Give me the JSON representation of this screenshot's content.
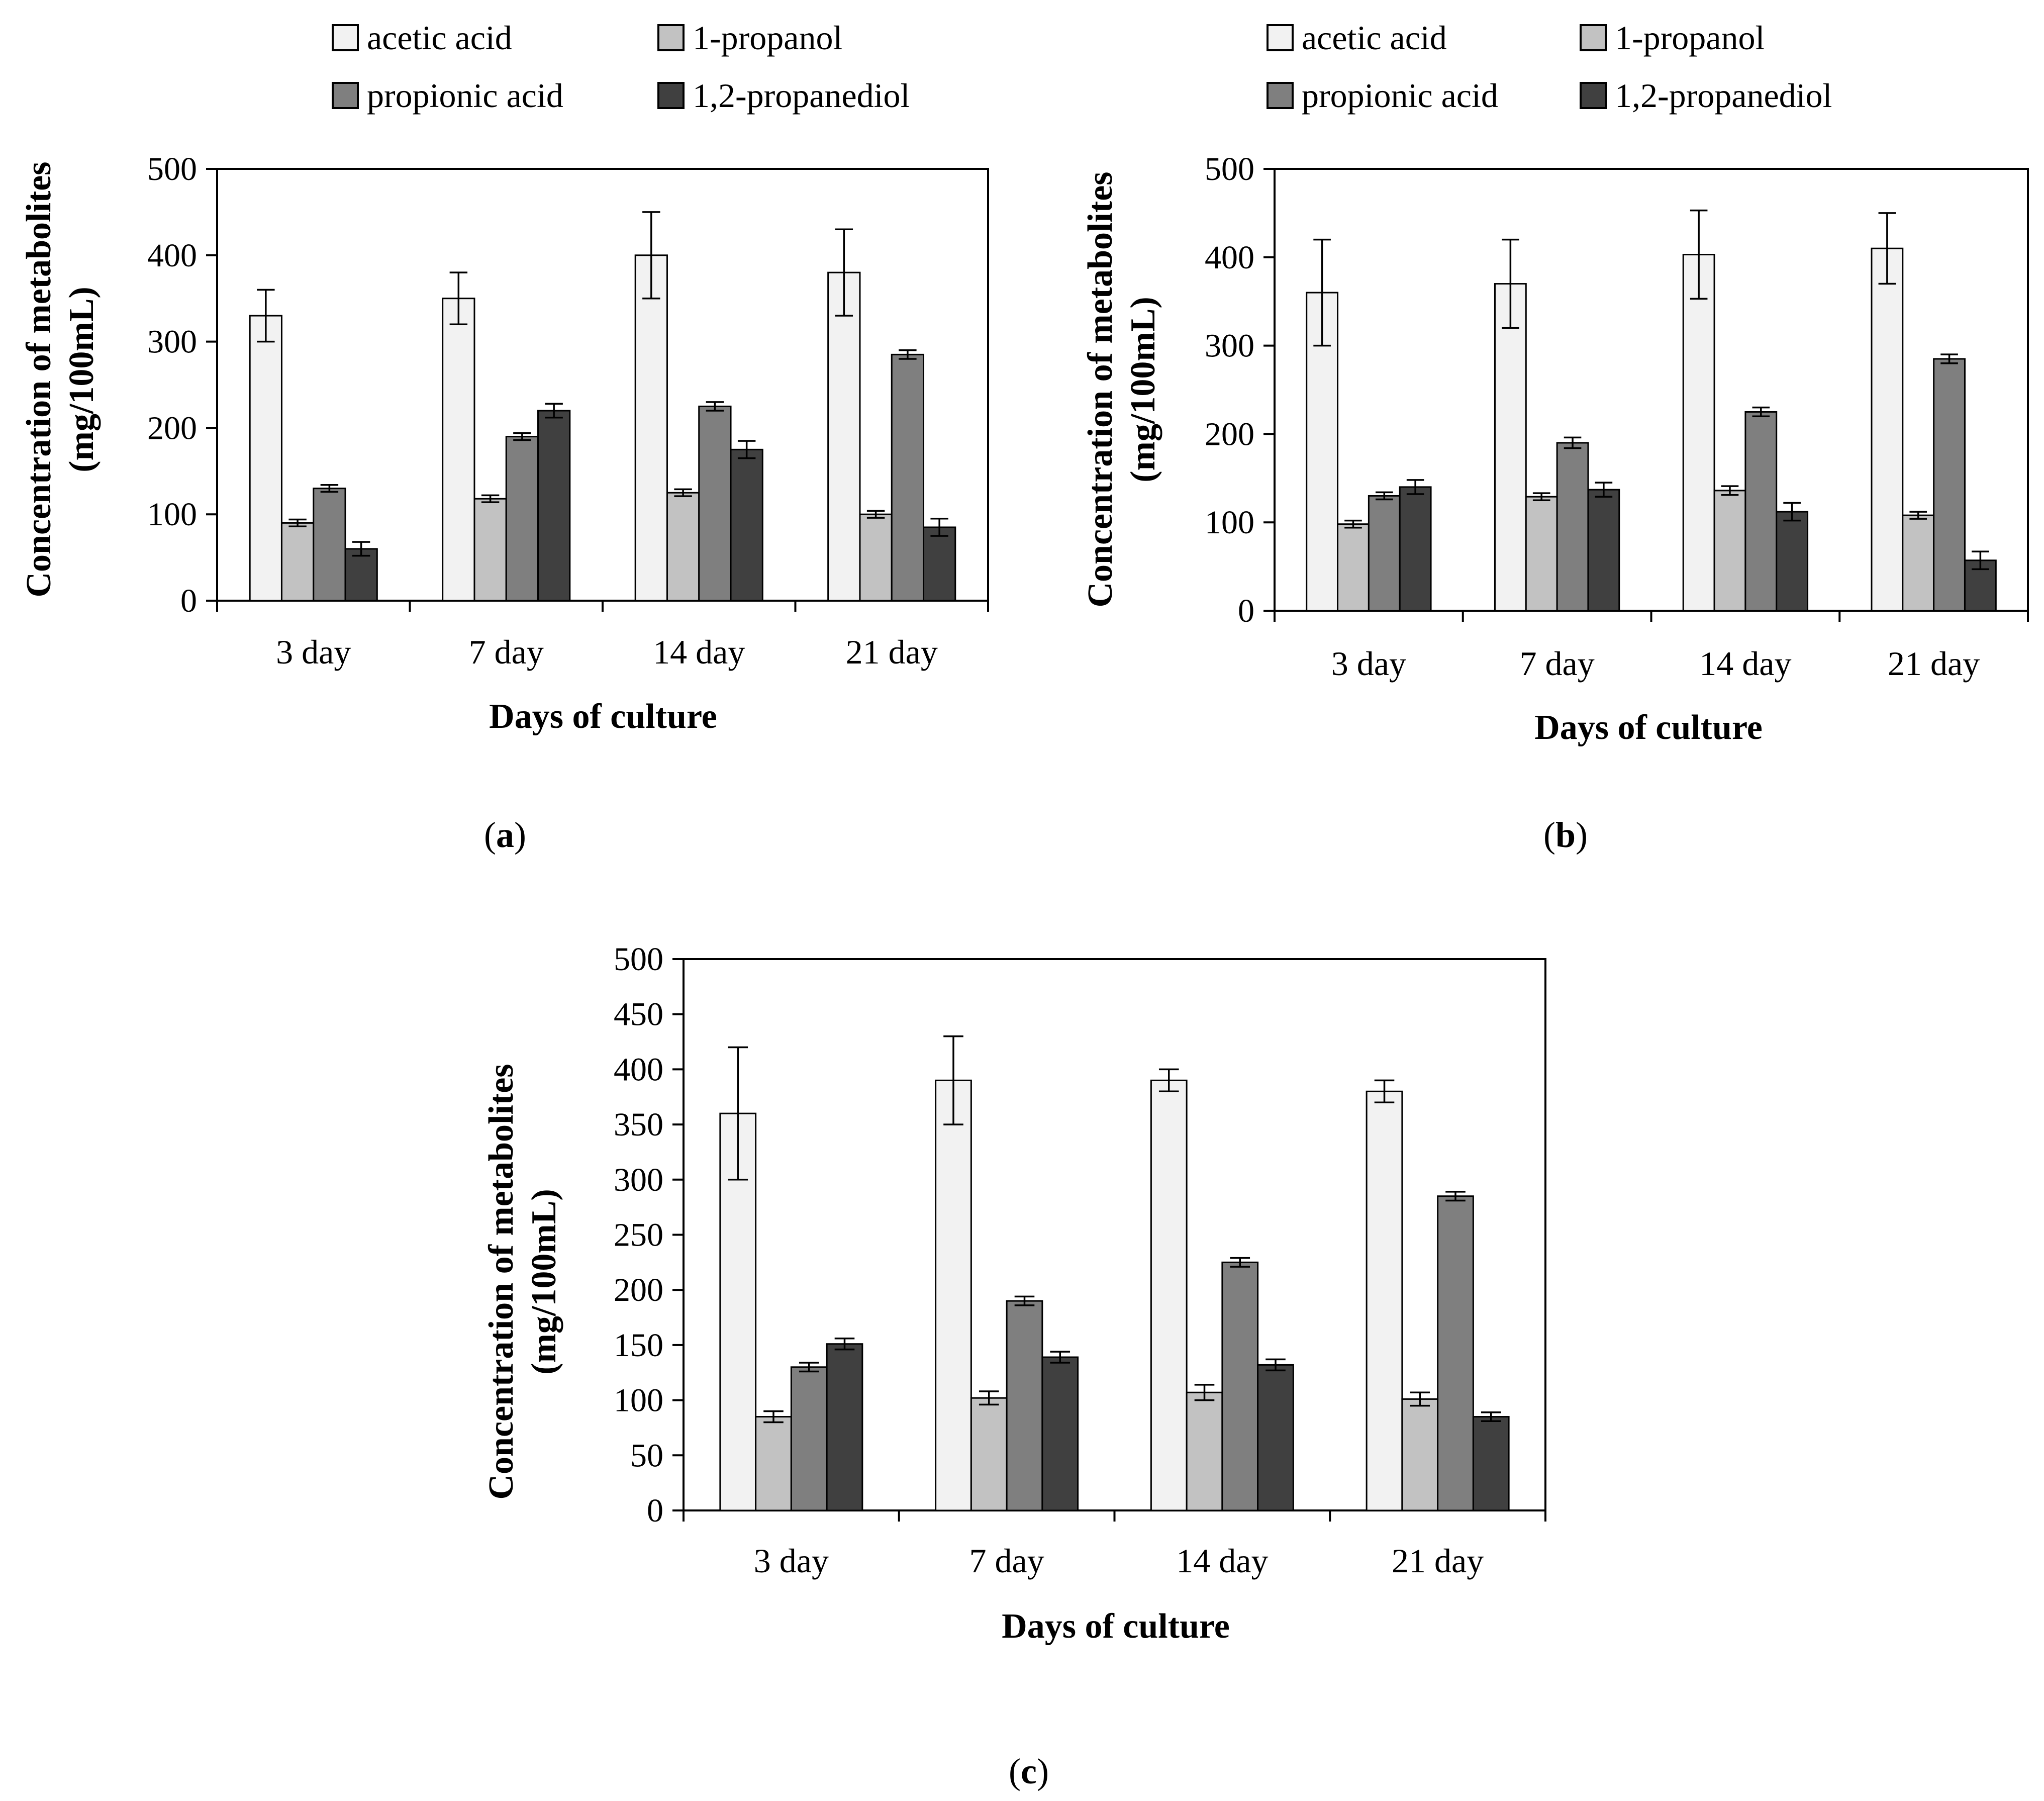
{
  "legend": [
    {
      "label": "acetic acid",
      "color": "#f2f2f2"
    },
    {
      "label": "1-propanol",
      "color": "#c2c2c2"
    },
    {
      "label": "propionic acid",
      "color": "#7f7f7f"
    },
    {
      "label": "1,2-propanediol",
      "color": "#404040"
    }
  ],
  "chart_data": [
    {
      "type": "bar",
      "panel_label": "a",
      "title": "",
      "xlabel": "Days of culture",
      "ylabel": [
        "Concentration of metabolites",
        "(mg/100mL)"
      ],
      "ylim": [
        0,
        500
      ],
      "yticks": [
        0,
        100,
        200,
        300,
        400,
        500
      ],
      "legend_position": "top",
      "categories": [
        "3 day",
        "7 day",
        "14 day",
        "21 day"
      ],
      "series": [
        {
          "name": "acetic acid",
          "values": [
            330,
            350,
            400,
            380
          ],
          "errors": [
            30,
            30,
            50,
            50
          ]
        },
        {
          "name": "1-propanol",
          "values": [
            90,
            118,
            125,
            100
          ],
          "errors": [
            4,
            4,
            4,
            4
          ]
        },
        {
          "name": "propionic acid",
          "values": [
            130,
            190,
            225,
            285
          ],
          "errors": [
            4,
            4,
            5,
            5
          ]
        },
        {
          "name": "1,2-propanediol",
          "values": [
            60,
            220,
            175,
            85
          ],
          "errors": [
            8,
            8,
            10,
            10
          ]
        }
      ]
    },
    {
      "type": "bar",
      "panel_label": "b",
      "title": "",
      "xlabel": "Days of culture",
      "ylabel": [
        "Concentration of metabolites",
        "(mg/100mL)"
      ],
      "ylim": [
        0,
        500
      ],
      "yticks": [
        0,
        100,
        200,
        300,
        400,
        500
      ],
      "legend_position": "top",
      "categories": [
        "3 day",
        "7 day",
        "14 day",
        "21 day"
      ],
      "series": [
        {
          "name": "acetic acid",
          "values": [
            360,
            370,
            403,
            410
          ],
          "errors": [
            60,
            50,
            50,
            40
          ]
        },
        {
          "name": "1-propanol",
          "values": [
            98,
            129,
            136,
            108
          ],
          "errors": [
            4,
            4,
            5,
            4
          ]
        },
        {
          "name": "propionic acid",
          "values": [
            130,
            190,
            225,
            285
          ],
          "errors": [
            4,
            6,
            5,
            5
          ]
        },
        {
          "name": "1,2-propanediol",
          "values": [
            140,
            137,
            112,
            57
          ],
          "errors": [
            8,
            8,
            10,
            10
          ]
        }
      ]
    },
    {
      "type": "bar",
      "panel_label": "c",
      "title": "",
      "xlabel": "Days of culture",
      "ylabel": [
        "Concentration of metabolites",
        "(mg/100mL)"
      ],
      "ylim": [
        0,
        500
      ],
      "yticks": [
        0,
        50,
        100,
        150,
        200,
        250,
        300,
        350,
        400,
        450,
        500
      ],
      "legend_position": "none",
      "categories": [
        "3 day",
        "7 day",
        "14 day",
        "21 day"
      ],
      "series": [
        {
          "name": "acetic acid",
          "values": [
            360,
            390,
            390,
            380
          ],
          "errors": [
            60,
            40,
            10,
            10
          ]
        },
        {
          "name": "1-propanol",
          "values": [
            85,
            102,
            107,
            101
          ],
          "errors": [
            5,
            6,
            7,
            6
          ]
        },
        {
          "name": "propionic acid",
          "values": [
            130,
            190,
            225,
            285
          ],
          "errors": [
            4,
            4,
            4,
            4
          ]
        },
        {
          "name": "1,2-propanediol",
          "values": [
            151,
            139,
            132,
            85
          ],
          "errors": [
            5,
            5,
            5,
            4
          ]
        }
      ]
    }
  ]
}
